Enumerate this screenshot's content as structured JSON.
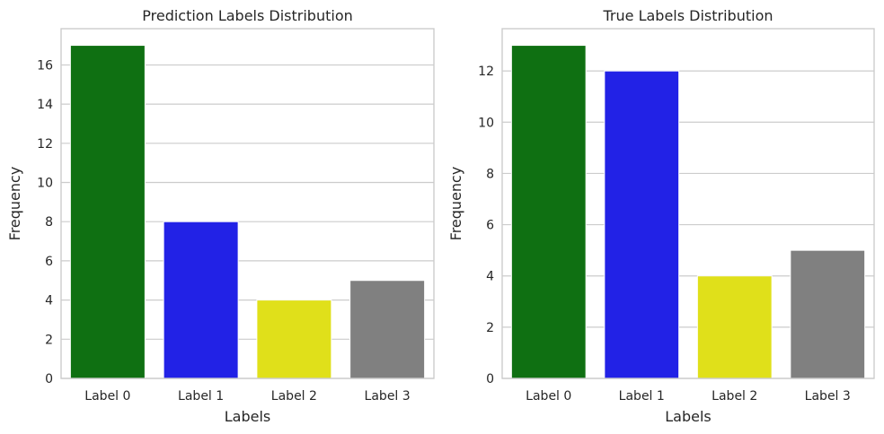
{
  "chart_data": [
    {
      "type": "bar",
      "title": "Prediction Labels Distribution",
      "xlabel": "Labels",
      "ylabel": "Frequency",
      "categories": [
        "Label 0",
        "Label 1",
        "Label 2",
        "Label 3"
      ],
      "values": [
        17,
        8,
        4,
        5
      ],
      "colors": [
        "#0f7012",
        "#2222e6",
        "#e0e01a",
        "#808080"
      ],
      "ylim": [
        0,
        17.85
      ],
      "yticks": [
        0,
        2,
        4,
        6,
        8,
        10,
        12,
        14,
        16
      ],
      "grid": true
    },
    {
      "type": "bar",
      "title": "True Labels Distribution",
      "xlabel": "Labels",
      "ylabel": "Frequency",
      "categories": [
        "Label 0",
        "Label 1",
        "Label 2",
        "Label 3"
      ],
      "values": [
        13,
        12,
        4,
        5
      ],
      "colors": [
        "#0f7012",
        "#2222e6",
        "#e0e01a",
        "#808080"
      ],
      "ylim": [
        0,
        13.65
      ],
      "yticks": [
        0,
        2,
        4,
        6,
        8,
        10,
        12
      ],
      "grid": true
    }
  ]
}
